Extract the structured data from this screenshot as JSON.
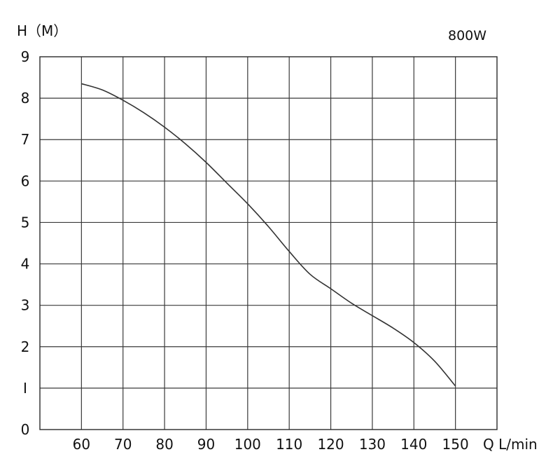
{
  "chart_data": {
    "type": "line",
    "title": "800W",
    "xlabel": "Q L/min",
    "ylabel": "H（M）",
    "x_ticks": [
      "60",
      "70",
      "80",
      "90",
      "100",
      "110",
      "120",
      "130",
      "140",
      "150"
    ],
    "y_ticks": [
      "0",
      "I",
      "2",
      "3",
      "4",
      "5",
      "6",
      "7",
      "8",
      "9"
    ],
    "xlim": [
      50,
      160
    ],
    "ylim": [
      0,
      9
    ],
    "grid": true,
    "series": [
      {
        "color": "#333333",
        "x": [
          60,
          65,
          70,
          75,
          80,
          85,
          90,
          95,
          100,
          105,
          110,
          115,
          120,
          125,
          130,
          135,
          140,
          145,
          150
        ],
        "y": [
          8.35,
          8.2,
          7.95,
          7.65,
          7.3,
          6.9,
          6.45,
          5.95,
          5.45,
          4.9,
          4.3,
          3.75,
          3.4,
          3.05,
          2.75,
          2.45,
          2.1,
          1.65,
          1.05
        ]
      }
    ]
  }
}
